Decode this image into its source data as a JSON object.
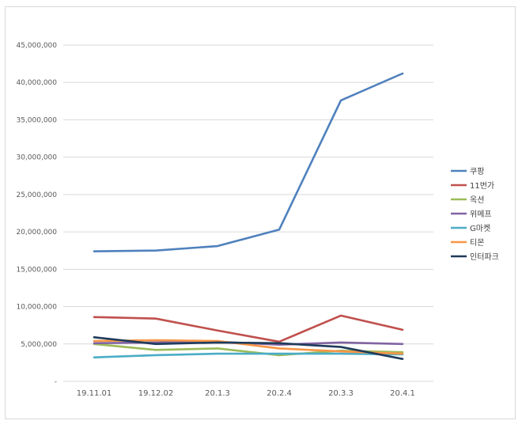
{
  "chart_data": {
    "type": "line",
    "title": "",
    "xlabel": "",
    "ylabel": "",
    "categories": [
      "19.11.01",
      "19.12.02",
      "20.1.3",
      "20.2.4",
      "20.3.3",
      "20.4.1"
    ],
    "ylim": [
      0,
      45000000
    ],
    "y_ticks": [
      0,
      5000000,
      10000000,
      15000000,
      20000000,
      25000000,
      30000000,
      35000000,
      40000000,
      45000000
    ],
    "y_tick_labels": [
      "-",
      "5,000,000",
      "10,000,000",
      "15,000,000",
      "20,000,000",
      "25,000,000",
      "30,000,000",
      "35,000,000",
      "40,000,000",
      "45,000,000"
    ],
    "grid": true,
    "legend_position": "right",
    "series": [
      {
        "name": "쿠팡",
        "color": "#4f81bd",
        "values": [
          17400000,
          17500000,
          18100000,
          20300000,
          37600000,
          41200000
        ]
      },
      {
        "name": "11번가",
        "color": "#c0504d",
        "values": [
          8600000,
          8400000,
          6800000,
          5300000,
          8800000,
          6900000
        ]
      },
      {
        "name": "옥션",
        "color": "#9bbb59",
        "values": [
          5000000,
          4200000,
          4400000,
          3500000,
          4100000,
          3900000
        ]
      },
      {
        "name": "위메프",
        "color": "#8064a2",
        "values": [
          5100000,
          5200000,
          5300000,
          4900000,
          5200000,
          5000000
        ]
      },
      {
        "name": "G마켓",
        "color": "#4bacc6",
        "values": [
          3200000,
          3500000,
          3700000,
          3700000,
          3700000,
          3600000
        ]
      },
      {
        "name": "티몬",
        "color": "#f79646",
        "values": [
          5400000,
          5500000,
          5400000,
          4400000,
          4000000,
          3700000
        ]
      },
      {
        "name": "인터파크",
        "color": "#1f3b5a",
        "values": [
          5900000,
          5000000,
          5200000,
          5100000,
          4600000,
          3000000
        ]
      }
    ]
  }
}
